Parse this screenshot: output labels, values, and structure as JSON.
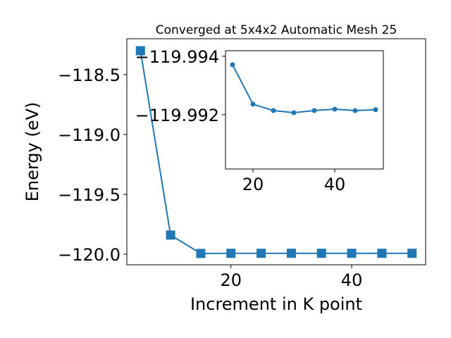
{
  "chart_data": [
    {
      "type": "line",
      "title": "Converged at 5x4x2 Automatic Mesh 25",
      "x_label": "Increment in K point",
      "y_label": "Energy (eV)",
      "x": [
        5,
        10,
        15,
        20,
        25,
        30,
        35,
        40,
        45,
        50
      ],
      "series": [
        {
          "color": "#1f77b4",
          "marker": "square",
          "values": [
            -118.3,
            -119.84,
            -119.99371,
            -119.99236,
            -119.99214,
            -119.99207,
            -119.99214,
            -119.99219,
            -119.99214,
            -119.99217
          ]
        }
      ],
      "xlim": [
        2.75,
        52.25
      ],
      "ylim": [
        -120.088,
        -118.2
      ],
      "xticks": [
        20,
        40
      ],
      "yticks": [
        {
          "value": -120.0,
          "label": "−120.0"
        },
        {
          "value": -119.5,
          "label": "−119.5"
        },
        {
          "value": -119.0,
          "label": "−119.0"
        },
        {
          "value": -118.5,
          "label": "−118.5"
        }
      ]
    },
    {
      "type": "line",
      "x": [
        15,
        20,
        25,
        30,
        35,
        40,
        45,
        50
      ],
      "series": [
        {
          "color": "#1f77b4",
          "marker": "circle",
          "values": [
            -119.99371,
            -119.99236,
            -119.99214,
            -119.99207,
            -119.99214,
            -119.99219,
            -119.99214,
            -119.99217
          ]
        }
      ],
      "xlim": [
        13.28,
        51.9
      ],
      "ylim": [
        -119.99014,
        -119.99419
      ],
      "xticks": [
        20,
        40
      ],
      "yticks": [
        {
          "value": -119.994,
          "label": "−119.994"
        },
        {
          "value": -119.992,
          "label": "−119.992"
        }
      ]
    }
  ]
}
